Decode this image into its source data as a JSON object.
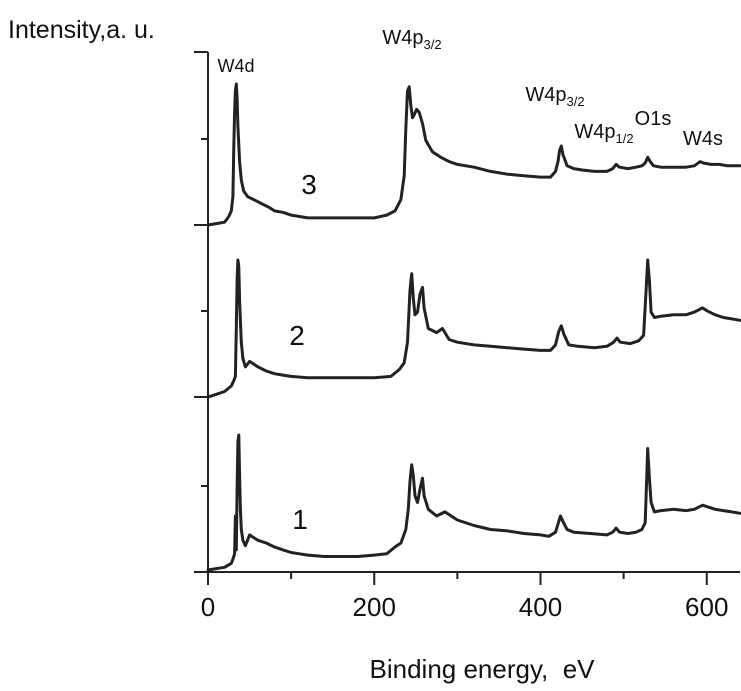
{
  "chart_data": {
    "type": "line",
    "ylabel": "Intensity,a. u.",
    "xlabel": "Binding energy,  eV",
    "xlim": [
      0,
      640
    ],
    "xticks": [
      0,
      200,
      400,
      600
    ],
    "xminor_ticks": [
      100,
      300,
      500
    ],
    "grid": false,
    "line_color": "#222222",
    "series": [
      {
        "name": "1",
        "points": [
          [
            0,
            0.0
          ],
          [
            10,
            0.01
          ],
          [
            20,
            0.02
          ],
          [
            28,
            0.05
          ],
          [
            30,
            0.08
          ],
          [
            32,
            0.12
          ],
          [
            33,
            0.4
          ],
          [
            34,
            0.15
          ],
          [
            35,
            0.6
          ],
          [
            36,
            0.95
          ],
          [
            37,
            1.0
          ],
          [
            38,
            0.7
          ],
          [
            39,
            0.45
          ],
          [
            40,
            0.3
          ],
          [
            42,
            0.22
          ],
          [
            45,
            0.18
          ],
          [
            50,
            0.26
          ],
          [
            55,
            0.24
          ],
          [
            60,
            0.22
          ],
          [
            70,
            0.2
          ],
          [
            80,
            0.17
          ],
          [
            90,
            0.15
          ],
          [
            100,
            0.13
          ],
          [
            110,
            0.12
          ],
          [
            120,
            0.11
          ],
          [
            140,
            0.1
          ],
          [
            160,
            0.1
          ],
          [
            180,
            0.1
          ],
          [
            200,
            0.11
          ],
          [
            215,
            0.12
          ],
          [
            225,
            0.17
          ],
          [
            232,
            0.2
          ],
          [
            238,
            0.3
          ],
          [
            241,
            0.45
          ],
          [
            243,
            0.66
          ],
          [
            245,
            0.78
          ],
          [
            247,
            0.7
          ],
          [
            249,
            0.55
          ],
          [
            252,
            0.5
          ],
          [
            255,
            0.6
          ],
          [
            258,
            0.68
          ],
          [
            260,
            0.55
          ],
          [
            265,
            0.45
          ],
          [
            275,
            0.4
          ],
          [
            285,
            0.43
          ],
          [
            300,
            0.37
          ],
          [
            320,
            0.33
          ],
          [
            340,
            0.3
          ],
          [
            360,
            0.29
          ],
          [
            380,
            0.27
          ],
          [
            400,
            0.26
          ],
          [
            410,
            0.25
          ],
          [
            418,
            0.28
          ],
          [
            422,
            0.36
          ],
          [
            424,
            0.4
          ],
          [
            427,
            0.36
          ],
          [
            432,
            0.3
          ],
          [
            440,
            0.28
          ],
          [
            460,
            0.27
          ],
          [
            480,
            0.26
          ],
          [
            487,
            0.28
          ],
          [
            491,
            0.31
          ],
          [
            495,
            0.28
          ],
          [
            505,
            0.27
          ],
          [
            515,
            0.28
          ],
          [
            522,
            0.3
          ],
          [
            526,
            0.35
          ],
          [
            529,
            0.9
          ],
          [
            531,
            0.68
          ],
          [
            533,
            0.5
          ],
          [
            537,
            0.43
          ],
          [
            545,
            0.44
          ],
          [
            560,
            0.45
          ],
          [
            575,
            0.44
          ],
          [
            585,
            0.45
          ],
          [
            595,
            0.48
          ],
          [
            600,
            0.47
          ],
          [
            610,
            0.45
          ],
          [
            620,
            0.44
          ],
          [
            630,
            0.43
          ],
          [
            640,
            0.42
          ]
        ]
      },
      {
        "name": "2",
        "points": [
          [
            0,
            0.0
          ],
          [
            10,
            0.02
          ],
          [
            20,
            0.04
          ],
          [
            28,
            0.08
          ],
          [
            31,
            0.12
          ],
          [
            33,
            0.15
          ],
          [
            34,
            0.5
          ],
          [
            35,
            0.85
          ],
          [
            36,
            1.0
          ],
          [
            37,
            0.95
          ],
          [
            38,
            0.7
          ],
          [
            40,
            0.4
          ],
          [
            42,
            0.28
          ],
          [
            45,
            0.22
          ],
          [
            50,
            0.26
          ],
          [
            55,
            0.24
          ],
          [
            60,
            0.22
          ],
          [
            70,
            0.19
          ],
          [
            80,
            0.17
          ],
          [
            90,
            0.16
          ],
          [
            100,
            0.15
          ],
          [
            120,
            0.14
          ],
          [
            140,
            0.14
          ],
          [
            160,
            0.14
          ],
          [
            180,
            0.14
          ],
          [
            200,
            0.14
          ],
          [
            220,
            0.15
          ],
          [
            230,
            0.2
          ],
          [
            236,
            0.25
          ],
          [
            240,
            0.4
          ],
          [
            243,
            0.78
          ],
          [
            245,
            0.9
          ],
          [
            247,
            0.72
          ],
          [
            249,
            0.6
          ],
          [
            252,
            0.62
          ],
          [
            255,
            0.75
          ],
          [
            258,
            0.8
          ],
          [
            260,
            0.65
          ],
          [
            265,
            0.5
          ],
          [
            275,
            0.47
          ],
          [
            282,
            0.5
          ],
          [
            290,
            0.42
          ],
          [
            300,
            0.4
          ],
          [
            320,
            0.38
          ],
          [
            340,
            0.37
          ],
          [
            360,
            0.36
          ],
          [
            380,
            0.35
          ],
          [
            400,
            0.34
          ],
          [
            412,
            0.34
          ],
          [
            418,
            0.38
          ],
          [
            422,
            0.48
          ],
          [
            425,
            0.52
          ],
          [
            428,
            0.46
          ],
          [
            434,
            0.38
          ],
          [
            445,
            0.37
          ],
          [
            465,
            0.36
          ],
          [
            480,
            0.37
          ],
          [
            488,
            0.4
          ],
          [
            492,
            0.43
          ],
          [
            496,
            0.4
          ],
          [
            508,
            0.39
          ],
          [
            518,
            0.41
          ],
          [
            524,
            0.45
          ],
          [
            527,
            0.78
          ],
          [
            529,
            1.0
          ],
          [
            531,
            0.85
          ],
          [
            533,
            0.62
          ],
          [
            537,
            0.58
          ],
          [
            545,
            0.59
          ],
          [
            560,
            0.6
          ],
          [
            575,
            0.6
          ],
          [
            585,
            0.62
          ],
          [
            595,
            0.65
          ],
          [
            600,
            0.63
          ],
          [
            610,
            0.6
          ],
          [
            620,
            0.58
          ],
          [
            630,
            0.57
          ],
          [
            640,
            0.56
          ]
        ]
      },
      {
        "name": "3",
        "points": [
          [
            0,
            0.0
          ],
          [
            10,
            0.01
          ],
          [
            20,
            0.02
          ],
          [
            25,
            0.06
          ],
          [
            28,
            0.1
          ],
          [
            30,
            0.2
          ],
          [
            31,
            0.55
          ],
          [
            32,
            0.8
          ],
          [
            33,
            0.95
          ],
          [
            34,
            1.0
          ],
          [
            35,
            0.9
          ],
          [
            36,
            0.7
          ],
          [
            38,
            0.45
          ],
          [
            40,
            0.32
          ],
          [
            43,
            0.24
          ],
          [
            48,
            0.2
          ],
          [
            55,
            0.18
          ],
          [
            65,
            0.15
          ],
          [
            75,
            0.12
          ],
          [
            80,
            0.1
          ],
          [
            90,
            0.09
          ],
          [
            100,
            0.07
          ],
          [
            120,
            0.05
          ],
          [
            140,
            0.05
          ],
          [
            160,
            0.05
          ],
          [
            180,
            0.05
          ],
          [
            200,
            0.05
          ],
          [
            215,
            0.07
          ],
          [
            225,
            0.1
          ],
          [
            232,
            0.18
          ],
          [
            236,
            0.35
          ],
          [
            238,
            0.68
          ],
          [
            240,
            0.95
          ],
          [
            242,
            0.98
          ],
          [
            244,
            0.85
          ],
          [
            246,
            0.76
          ],
          [
            248,
            0.78
          ],
          [
            251,
            0.82
          ],
          [
            254,
            0.8
          ],
          [
            258,
            0.72
          ],
          [
            262,
            0.6
          ],
          [
            270,
            0.52
          ],
          [
            280,
            0.48
          ],
          [
            290,
            0.45
          ],
          [
            300,
            0.43
          ],
          [
            320,
            0.41
          ],
          [
            340,
            0.38
          ],
          [
            360,
            0.36
          ],
          [
            380,
            0.35
          ],
          [
            400,
            0.34
          ],
          [
            412,
            0.34
          ],
          [
            418,
            0.38
          ],
          [
            421,
            0.45
          ],
          [
            423,
            0.53
          ],
          [
            425,
            0.56
          ],
          [
            427,
            0.5
          ],
          [
            432,
            0.42
          ],
          [
            440,
            0.4
          ],
          [
            450,
            0.39
          ],
          [
            465,
            0.38
          ],
          [
            480,
            0.38
          ],
          [
            487,
            0.4
          ],
          [
            491,
            0.43
          ],
          [
            495,
            0.41
          ],
          [
            505,
            0.4
          ],
          [
            515,
            0.41
          ],
          [
            522,
            0.42
          ],
          [
            526,
            0.44
          ],
          [
            529,
            0.48
          ],
          [
            532,
            0.45
          ],
          [
            536,
            0.42
          ],
          [
            545,
            0.41
          ],
          [
            560,
            0.41
          ],
          [
            575,
            0.41
          ],
          [
            585,
            0.42
          ],
          [
            592,
            0.45
          ],
          [
            596,
            0.44
          ],
          [
            605,
            0.43
          ],
          [
            615,
            0.43
          ],
          [
            625,
            0.42
          ],
          [
            640,
            0.42
          ]
        ]
      }
    ],
    "annotations": [
      {
        "text": "W4d",
        "x": 30,
        "series": "3"
      },
      {
        "text": "W4p",
        "sub": "3/2",
        "x": 265,
        "series": "3"
      },
      {
        "text": "W4p",
        "sub": "3/2",
        "x": 418,
        "series": "3"
      },
      {
        "text": "W4p",
        "sub": "1/2",
        "x": 478,
        "series": "3"
      },
      {
        "text": "O1s",
        "x": 532,
        "series": "3"
      },
      {
        "text": "W4s",
        "x": 597,
        "series": "3"
      }
    ]
  }
}
